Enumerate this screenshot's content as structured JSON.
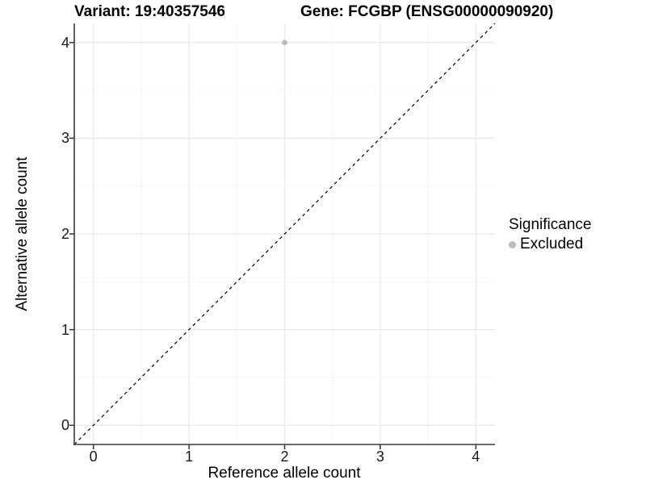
{
  "chart_data": {
    "type": "scatter",
    "title_variant": "Variant: 19:40357546",
    "title_gene": "Gene: FCGBP (ENSG00000090920)",
    "title": "Variant: 19:40357546 — Gene: FCGBP (ENSG00000090920)",
    "xlabel": "Reference allele count",
    "ylabel": "Alternative allele count",
    "xlim": [
      -0.2,
      4.2
    ],
    "ylim": [
      -0.2,
      4.2
    ],
    "xticks": [
      0,
      1,
      2,
      3,
      4
    ],
    "yticks": [
      0,
      1,
      2,
      3,
      4
    ],
    "minor_xticks": [
      0.5,
      1.5,
      2.5,
      3.5
    ],
    "minor_yticks": [
      0.5,
      1.5,
      2.5,
      3.5
    ],
    "grid": true,
    "series": [
      {
        "name": "Excluded",
        "points": [
          {
            "x": 2,
            "y": 4
          }
        ],
        "color": "#bcbcbc",
        "point_radius": 3.3
      }
    ],
    "reference_line": {
      "slope": 1,
      "intercept": 0,
      "style": "dashed",
      "color": "#000000"
    },
    "legend": {
      "title": "Significance",
      "position": "right",
      "items": [
        {
          "label": "Excluded",
          "color": "#bcbcbc"
        }
      ]
    },
    "colors": {
      "background": "#ffffff",
      "grid_major": "#e8e8e8",
      "grid_minor": "#f4f4f4",
      "axis_line": "#3c3c3c",
      "tick_mark": "#3c3c3c",
      "tick_label": "#1a1a1a",
      "point": "#bcbcbc"
    }
  }
}
